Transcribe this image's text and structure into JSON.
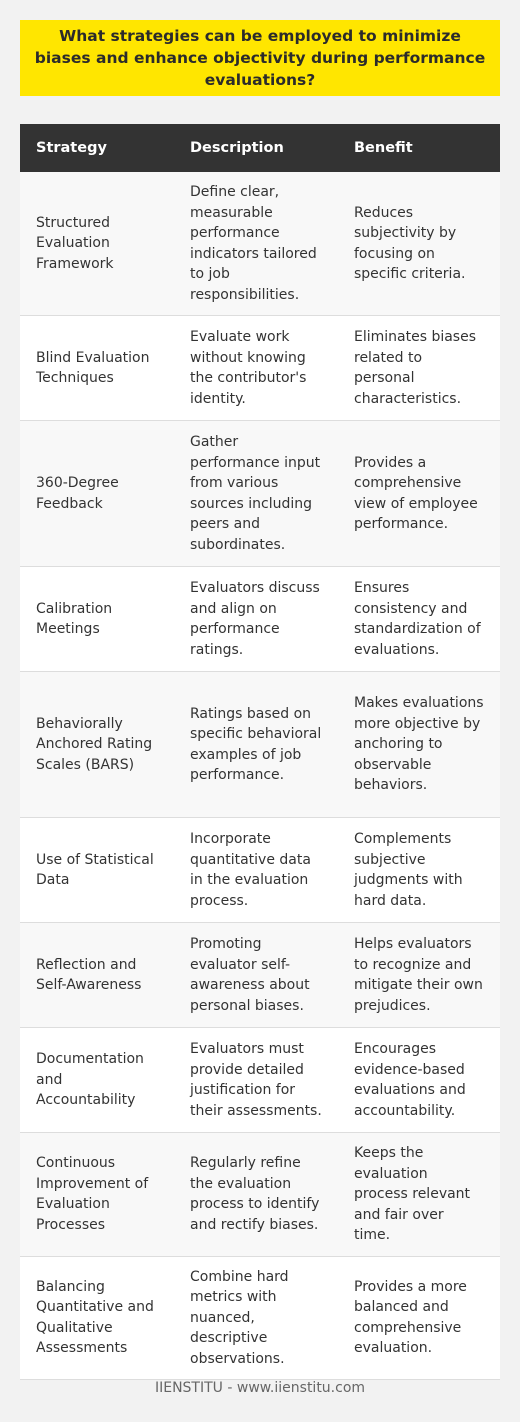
{
  "title": "What strategies can be employed to minimize biases and enhance objectivity during performance evaluations?",
  "table": {
    "headers": [
      "Strategy",
      "Description",
      "Benefit"
    ],
    "rows": [
      {
        "strategy": "Structured Evaluation Framework",
        "description": "Define clear, measurable performance indicators tailored to job responsibilities.",
        "benefit": "Reduces subjectivity by focusing on specific criteria."
      },
      {
        "strategy": "Blind Evaluation Techniques",
        "description": "Evaluate work without knowing the contributor's identity.",
        "benefit": "Eliminates biases related to personal characteristics."
      },
      {
        "strategy": "360-Degree Feedback",
        "description": "Gather performance input from various sources including peers and subordinates.",
        "benefit": "Provides a comprehensive view of employee performance."
      },
      {
        "strategy": "Calibration Meetings",
        "description": "Evaluators discuss and align on performance ratings.",
        "benefit": "Ensures consistency and standardization of evaluations."
      },
      {
        "strategy": "Behaviorally Anchored Rating Scales (BARS)",
        "description": "Ratings based on specific behavioral examples of job performance.",
        "benefit": "Makes evaluations more objective by anchoring to observable behaviors."
      },
      {
        "strategy": "Use of Statistical Data",
        "description": "Incorporate quantitative data in the evaluation process.",
        "benefit": "Complements subjective judgments with hard data."
      },
      {
        "strategy": "Reflection and Self-Awareness",
        "description": "Promoting evaluator self-awareness about personal biases.",
        "benefit": "Helps evaluators to recognize and mitigate their own prejudices."
      },
      {
        "strategy": "Documentation and Accountability",
        "description": "Evaluators must provide detailed justification for their assessments.",
        "benefit": "Encourages evidence-based evaluations and accountability."
      },
      {
        "strategy": "Continuous Improvement of Evaluation Processes",
        "description": "Regularly refine the evaluation process to identify and rectify biases.",
        "benefit": "Keeps the evaluation process relevant and fair over time."
      },
      {
        "strategy": "Balancing Quantitative and Qualitative Assessments",
        "description": "Combine hard metrics with nuanced, descriptive observations.",
        "benefit": "Provides a more balanced and comprehensive evaluation."
      }
    ]
  },
  "footer": "IIENSTITU - www.iienstitu.com",
  "colors": {
    "title_background": "#ffe600",
    "header_background": "#333333",
    "header_text": "#ffffff",
    "page_background": "#f2f2f2"
  }
}
